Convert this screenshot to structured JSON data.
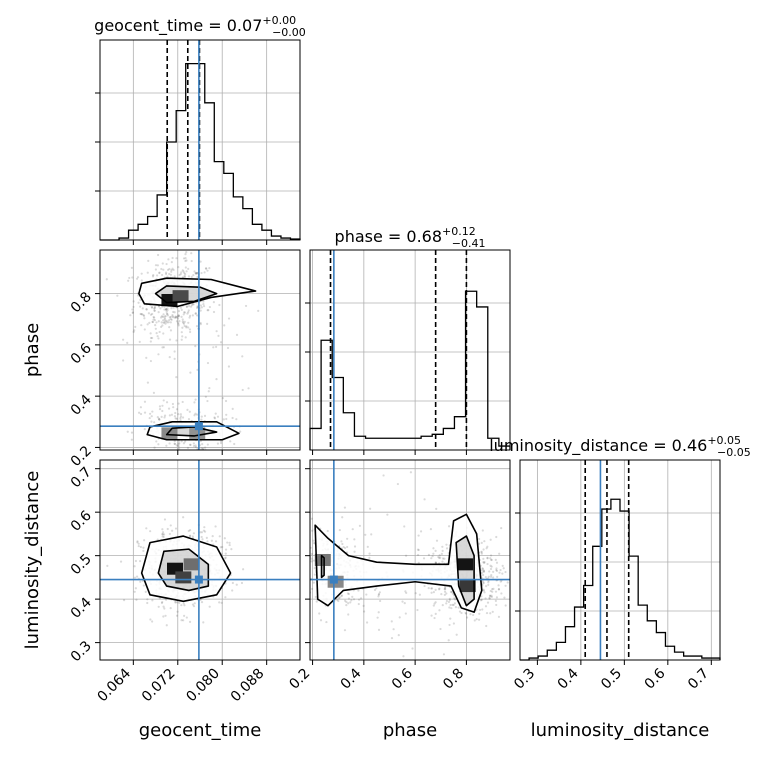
{
  "chart_data": {
    "type": "corner",
    "truth_color": "#3a7fbf",
    "parameters": [
      {
        "name": "geocent_time",
        "axis_label": "geocent_time",
        "range": [
          0.058,
          0.094
        ],
        "ticks": [
          0.064,
          0.072,
          0.08,
          0.088
        ],
        "tick_labels": [
          "0.064",
          "0.072",
          "0.080",
          "0.088"
        ],
        "truth": 0.0758,
        "quantiles": [
          0.0701,
          0.0738,
          0.0759
        ],
        "title": {
          "prefix": "geocent_time = 0.07",
          "plus": "+0.00",
          "minus": "−0.00"
        },
        "hist_bins": [
          0.0,
          0.0,
          0.01,
          0.05,
          0.08,
          0.12,
          0.23,
          0.5,
          0.66,
          0.9,
          0.9,
          0.7,
          0.4,
          0.34,
          0.22,
          0.16,
          0.08,
          0.05,
          0.02,
          0.01,
          0.005
        ]
      },
      {
        "name": "phase",
        "axis_label": "phase",
        "range": [
          0.19,
          0.97
        ],
        "ticks": [
          0.2,
          0.4,
          0.6,
          0.8
        ],
        "tick_labels": [
          "0.2",
          "0.4",
          "0.6",
          "0.8"
        ],
        "truth": 0.283,
        "quantiles": [
          0.27,
          0.68,
          0.8
        ],
        "title": {
          "prefix": "phase = 0.68",
          "plus": "+0.12",
          "minus": "−0.41"
        },
        "hist_bins": [
          0.11,
          0.56,
          0.37,
          0.19,
          0.07,
          0.06,
          0.06,
          0.06,
          0.06,
          0.06,
          0.07,
          0.08,
          0.11,
          0.17,
          0.81,
          0.73,
          0.06,
          0.02
        ]
      },
      {
        "name": "luminosity_distance",
        "axis_label": "luminosity_distance",
        "range": [
          0.26,
          0.72
        ],
        "ticks": [
          0.3,
          0.4,
          0.5,
          0.6,
          0.7
        ],
        "tick_labels": [
          "0.3",
          "0.4",
          "0.5",
          "0.6",
          "0.7"
        ],
        "truth": 0.445,
        "quantiles": [
          0.41,
          0.46,
          0.51
        ],
        "title": {
          "prefix": "luminosity_distance = 0.46",
          "plus": "+0.05",
          "minus": "−0.05"
        },
        "hist_bins": [
          0.0,
          0.01,
          0.02,
          0.05,
          0.09,
          0.17,
          0.27,
          0.38,
          0.58,
          0.77,
          0.82,
          0.76,
          0.53,
          0.28,
          0.2,
          0.14,
          0.07,
          0.04,
          0.02,
          0.02,
          0.01,
          0.01
        ]
      }
    ],
    "pair_plots": [
      {
        "x": "geocent_time",
        "y": "phase",
        "contours": [
          {
            "level": "outer",
            "rings": [
              [
                [
                  0.0655,
                  0.84
                ],
                [
                  0.07,
                  0.86
                ],
                [
                  0.078,
                  0.855
                ],
                [
                  0.086,
                  0.81
                ],
                [
                  0.078,
                  0.785
                ],
                [
                  0.072,
                  0.75
                ],
                [
                  0.066,
                  0.76
                ],
                [
                  0.065,
                  0.8
                ]
              ],
              [
                [
                  0.0665,
                  0.25
                ],
                [
                  0.07,
                  0.23
                ],
                [
                  0.08,
                  0.23
                ],
                [
                  0.083,
                  0.255
                ],
                [
                  0.079,
                  0.3
                ],
                [
                  0.071,
                  0.3
                ],
                [
                  0.067,
                  0.28
                ]
              ]
            ]
          },
          {
            "level": "inner",
            "rings": [
              [
                [
                  0.068,
                  0.8
                ],
                [
                  0.07,
                  0.83
                ],
                [
                  0.076,
                  0.825
                ],
                [
                  0.079,
                  0.8
                ],
                [
                  0.075,
                  0.77
                ],
                [
                  0.07,
                  0.765
                ]
              ],
              [
                [
                  0.07,
                  0.25
                ],
                [
                  0.075,
                  0.245
                ],
                [
                  0.079,
                  0.26
                ],
                [
                  0.075,
                  0.28
                ],
                [
                  0.071,
                  0.275
                ]
              ]
            ]
          }
        ],
        "density_peaks": [
          [
            0.0705,
            0.775,
            1.0
          ],
          [
            0.0725,
            0.79,
            0.7
          ],
          [
            0.0705,
            0.255,
            0.35
          ],
          [
            0.0755,
            0.255,
            0.3
          ],
          [
            0.0735,
            0.55,
            0.08
          ]
        ]
      },
      {
        "x": "geocent_time",
        "y": "luminosity_distance",
        "contours": [
          {
            "level": "outer",
            "rings": [
              [
                [
                  0.0655,
                  0.46
                ],
                [
                  0.067,
                  0.53
                ],
                [
                  0.073,
                  0.545
                ],
                [
                  0.079,
                  0.52
                ],
                [
                  0.0815,
                  0.46
                ],
                [
                  0.079,
                  0.41
                ],
                [
                  0.073,
                  0.395
                ],
                [
                  0.067,
                  0.41
                ]
              ]
            ]
          },
          {
            "level": "inner",
            "rings": [
              [
                [
                  0.0685,
                  0.46
                ],
                [
                  0.0695,
                  0.51
                ],
                [
                  0.074,
                  0.515
                ],
                [
                  0.0775,
                  0.48
                ],
                [
                  0.0775,
                  0.43
                ],
                [
                  0.074,
                  0.42
                ],
                [
                  0.07,
                  0.43
                ]
              ]
            ]
          }
        ],
        "density_peaks": [
          [
            0.0715,
            0.47,
            1.0
          ],
          [
            0.073,
            0.45,
            0.75
          ],
          [
            0.0745,
            0.48,
            0.5
          ]
        ]
      },
      {
        "x": "phase",
        "y": "luminosity_distance",
        "contours": [
          {
            "level": "outer",
            "rings": [
              [
                [
                  0.21,
                  0.57
                ],
                [
                  0.26,
                  0.54
                ],
                [
                  0.34,
                  0.5
                ],
                [
                  0.45,
                  0.485
                ],
                [
                  0.6,
                  0.48
                ],
                [
                  0.73,
                  0.48
                ],
                [
                  0.75,
                  0.58
                ],
                [
                  0.8,
                  0.595
                ],
                [
                  0.84,
                  0.55
                ],
                [
                  0.86,
                  0.42
                ],
                [
                  0.83,
                  0.37
                ],
                [
                  0.78,
                  0.38
                ],
                [
                  0.74,
                  0.43
                ],
                [
                  0.6,
                  0.44
                ],
                [
                  0.45,
                  0.43
                ],
                [
                  0.32,
                  0.42
                ],
                [
                  0.26,
                  0.385
                ],
                [
                  0.22,
                  0.4
                ]
              ]
            ]
          },
          {
            "level": "inner",
            "rings": [
              [
                [
                  0.76,
                  0.53
                ],
                [
                  0.8,
                  0.545
                ],
                [
                  0.83,
                  0.5
                ],
                [
                  0.83,
                  0.4
                ],
                [
                  0.8,
                  0.385
                ],
                [
                  0.77,
                  0.43
                ]
              ],
              [
                [
                  0.235,
                  0.5
                ],
                [
                  0.245,
                  0.495
                ],
                [
                  0.245,
                  0.455
                ],
                [
                  0.235,
                  0.45
                ]
              ]
            ]
          }
        ],
        "density_peaks": [
          [
            0.795,
            0.48,
            1.0
          ],
          [
            0.805,
            0.43,
            0.8
          ],
          [
            0.24,
            0.49,
            0.45
          ],
          [
            0.29,
            0.44,
            0.35
          ],
          [
            0.5,
            0.45,
            0.12
          ]
        ]
      }
    ]
  }
}
